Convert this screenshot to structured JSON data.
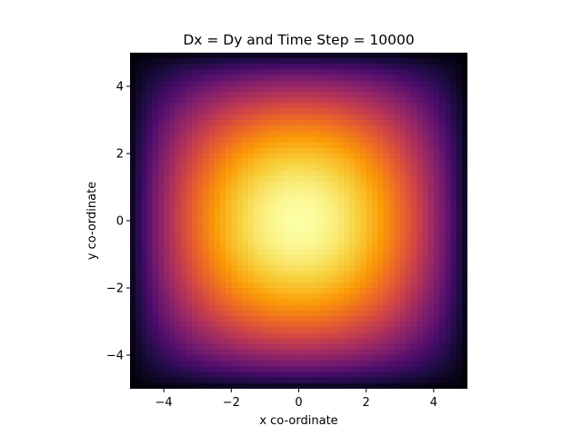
{
  "chart_data": {
    "type": "heatmap",
    "title": "Dx = Dy and Time Step = 10000",
    "xlabel": "x co-ordinate",
    "ylabel": "y co-ordinate",
    "xlim": [
      -5,
      5
    ],
    "ylim": [
      -5,
      5
    ],
    "x_ticks": [
      -4,
      -2,
      0,
      2,
      4
    ],
    "y_ticks": [
      -4,
      -2,
      0,
      2,
      4
    ],
    "x_tick_labels": [
      "−4",
      "−2",
      "0",
      "2",
      "4"
    ],
    "y_tick_labels": [
      "−4",
      "−2",
      "0",
      "2",
      "4"
    ],
    "grid": false,
    "colormap": "inferno",
    "colorbar": false,
    "value_description": "peak at center (0, 0), falling to zero at the boundary x = ±5, y = ±5",
    "peak": {
      "x": 0,
      "y": 0,
      "value": 1.0
    },
    "boundary_value": 0.0
  },
  "colors": {
    "cmap_stops": [
      "#000004",
      "#1b0c41",
      "#4a0c6b",
      "#781c6d",
      "#a52c60",
      "#cf4446",
      "#ed6925",
      "#fb9b06",
      "#f7d13d",
      "#fcffa4"
    ]
  }
}
